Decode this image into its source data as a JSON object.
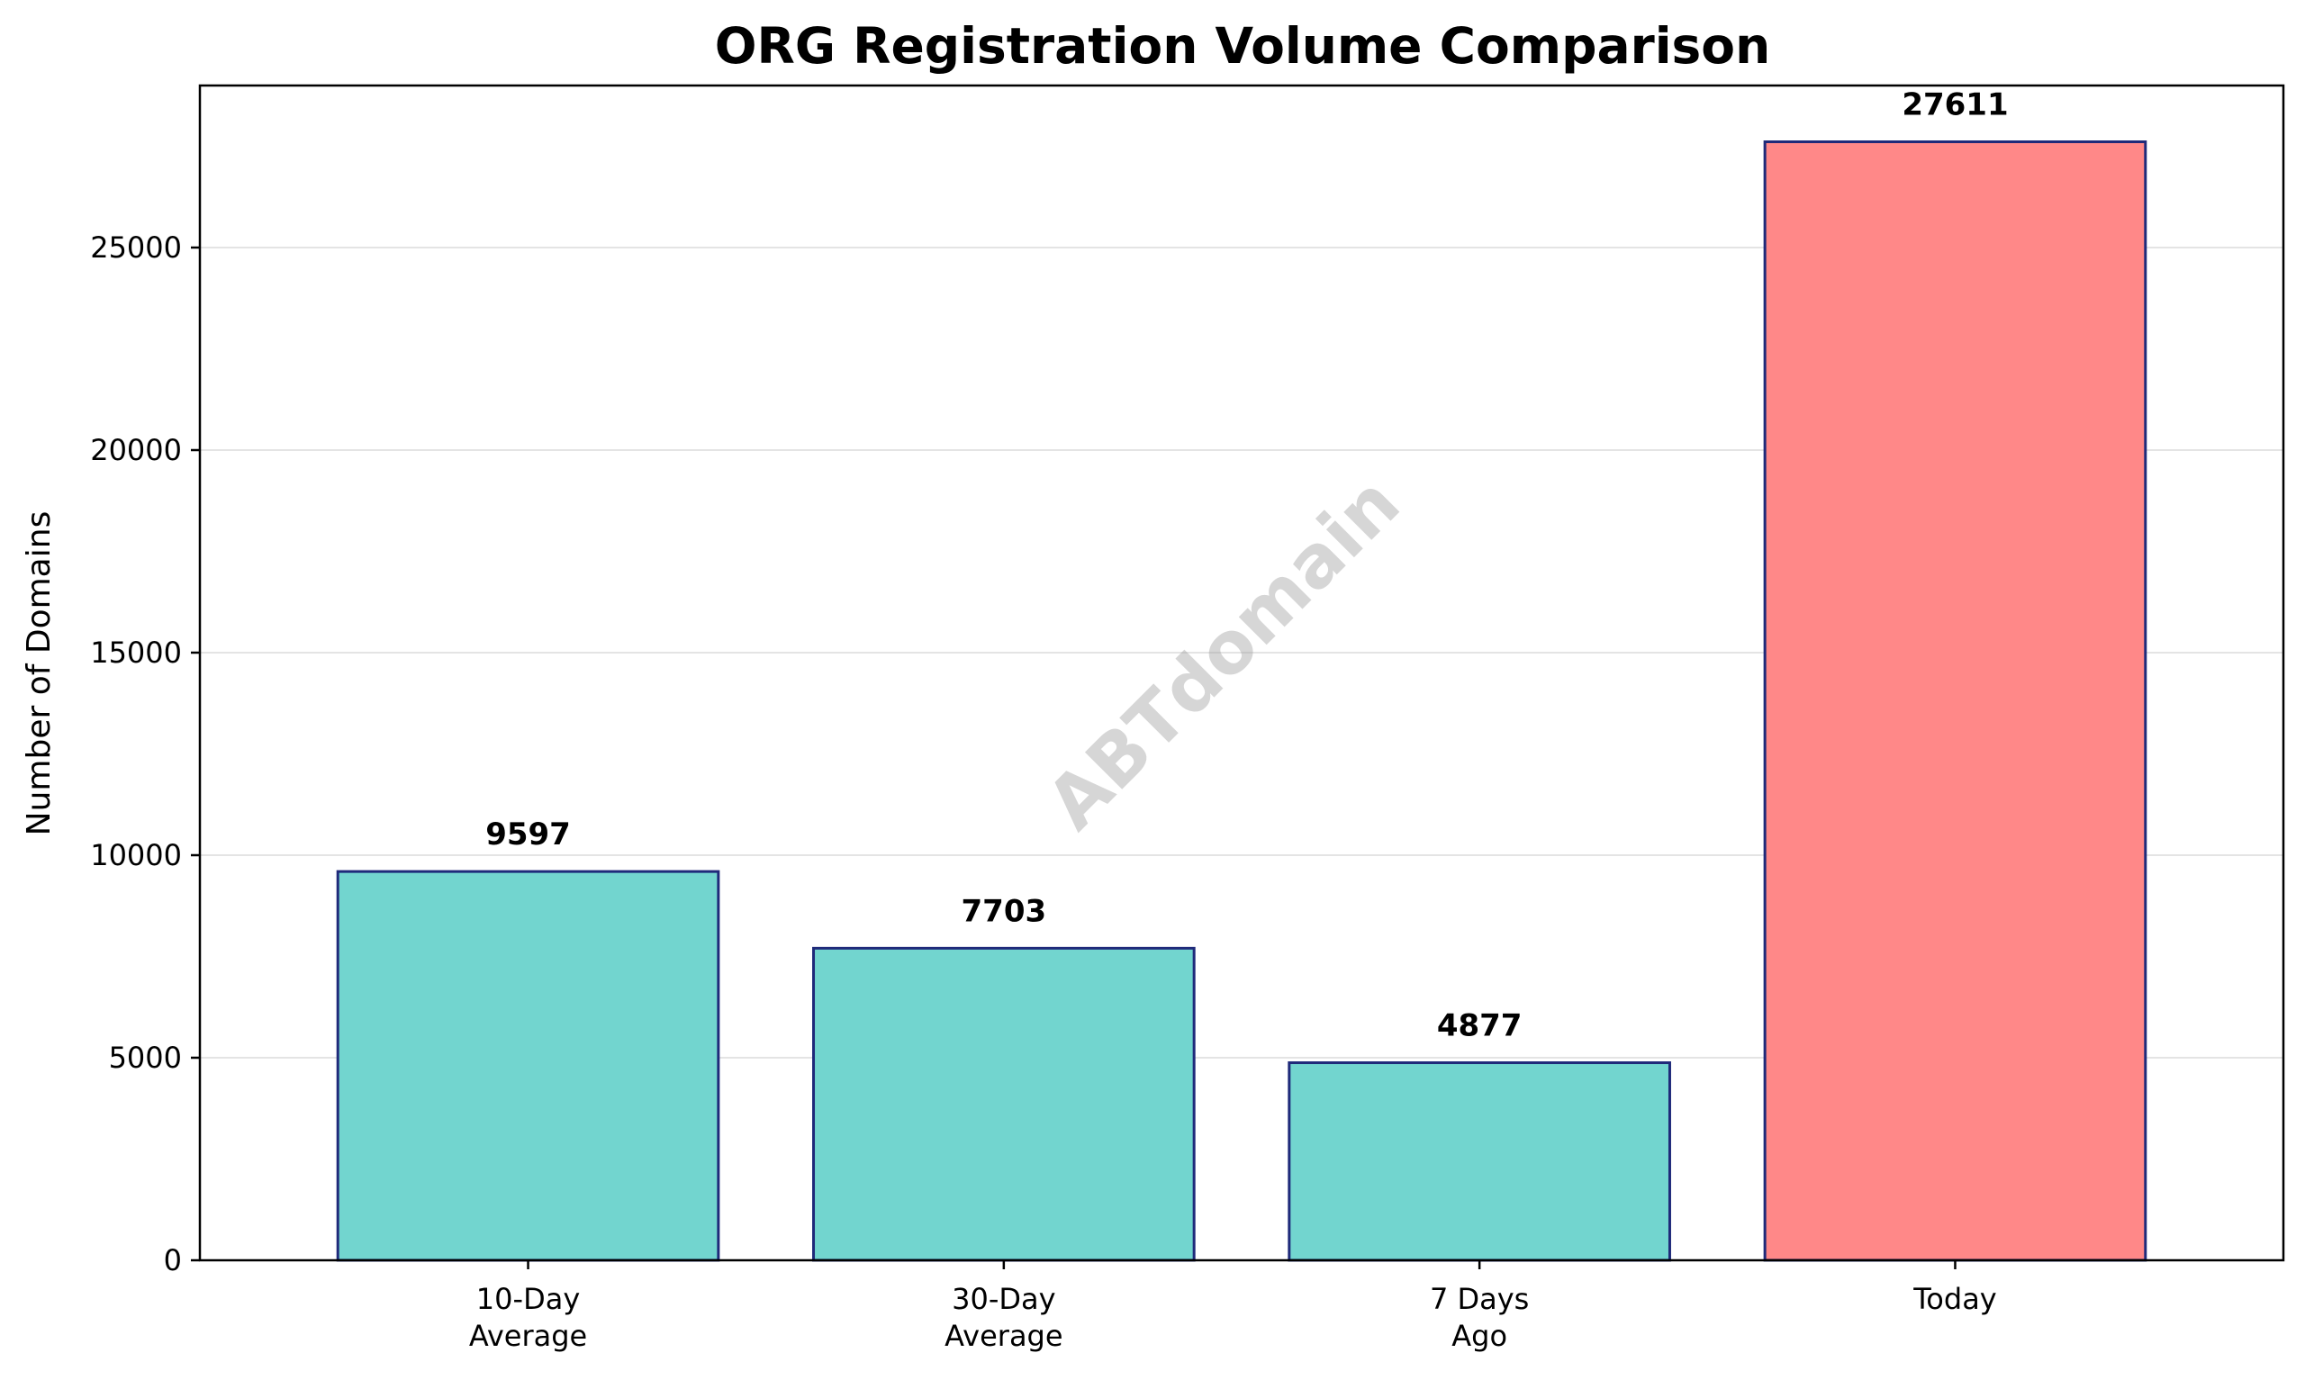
{
  "chart_data": {
    "type": "bar",
    "title": "ORG Registration Volume Comparison",
    "xlabel": "",
    "ylabel": "Number of Domains",
    "categories": [
      "10-Day\nAverage",
      "30-Day\nAverage",
      "7 Days\nAgo",
      "Today"
    ],
    "values": [
      9597,
      7703,
      4877,
      27611
    ],
    "bar_colors": [
      "#72d5cf",
      "#72d5cf",
      "#72d5cf",
      "#ff8888"
    ],
    "edge_color": "#1f2a7a",
    "ylim": [
      0,
      29000
    ],
    "yticks": [
      0,
      5000,
      10000,
      15000,
      20000,
      25000
    ],
    "grid": "horizontal",
    "legend": "none",
    "watermark": "ABTdomain"
  }
}
